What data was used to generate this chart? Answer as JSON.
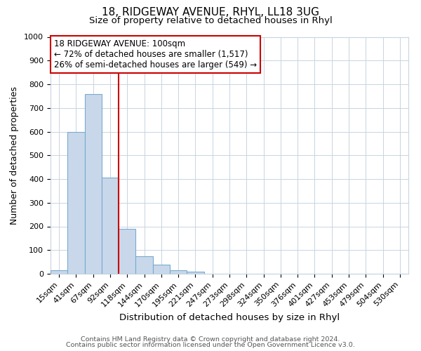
{
  "title1": "18, RIDGEWAY AVENUE, RHYL, LL18 3UG",
  "title2": "Size of property relative to detached houses in Rhyl",
  "xlabel": "Distribution of detached houses by size in Rhyl",
  "ylabel": "Number of detached properties",
  "bar_labels": [
    "15sqm",
    "41sqm",
    "67sqm",
    "92sqm",
    "118sqm",
    "144sqm",
    "170sqm",
    "195sqm",
    "221sqm",
    "247sqm",
    "273sqm",
    "298sqm",
    "324sqm",
    "350sqm",
    "376sqm",
    "401sqm",
    "427sqm",
    "453sqm",
    "479sqm",
    "504sqm",
    "530sqm"
  ],
  "bar_values": [
    15,
    600,
    760,
    405,
    190,
    75,
    40,
    15,
    10,
    0,
    0,
    0,
    0,
    0,
    0,
    0,
    0,
    0,
    0,
    0,
    0
  ],
  "bar_color": "#c8d8ea",
  "bar_edge_color": "#7aaacf",
  "vline_color": "#cc0000",
  "annotation_title": "18 RIDGEWAY AVENUE: 100sqm",
  "annotation_line1": "← 72% of detached houses are smaller (1,517)",
  "annotation_line2": "26% of semi-detached houses are larger (549) →",
  "annotation_box_color": "#ffffff",
  "annotation_box_edge_color": "#cc0000",
  "ylim": [
    0,
    1000
  ],
  "yticks": [
    0,
    100,
    200,
    300,
    400,
    500,
    600,
    700,
    800,
    900,
    1000
  ],
  "footer1": "Contains HM Land Registry data © Crown copyright and database right 2024.",
  "footer2": "Contains public sector information licensed under the Open Government Licence v3.0.",
  "background_color": "#ffffff",
  "grid_color": "#c8d4e0",
  "title1_fontsize": 11,
  "title2_fontsize": 9.5,
  "xlabel_fontsize": 9.5,
  "ylabel_fontsize": 9,
  "tick_fontsize": 8,
  "footer_fontsize": 6.8,
  "annotation_fontsize": 8.5
}
